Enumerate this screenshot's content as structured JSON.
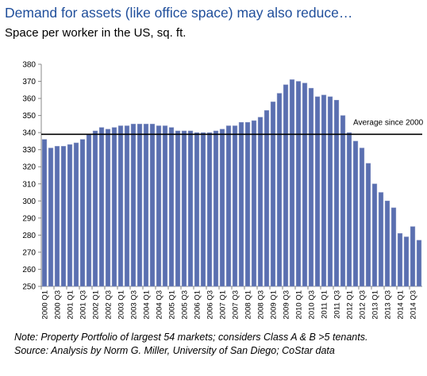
{
  "headline": "Demand for assets (like office space) may also reduce…",
  "subtitle": "Space per worker in the US, sq. ft.",
  "footnotes": {
    "note": "Note: Property Portfolio of largest 54 markets; considers Class A & B >5 tenants.",
    "source": "Source:  Analysis by Norm G. Miller, University of San Diego; CoStar data"
  },
  "colors": {
    "bar": "#5a6fb0",
    "bar_edge": "#8a97c6",
    "reference_line": "#000000",
    "title": "#1f4e9b"
  },
  "chart_data": {
    "type": "bar",
    "title": "Space per worker in the US, sq. ft.",
    "xlabel": "",
    "ylabel": "",
    "ylim": [
      250,
      380
    ],
    "y_ticks": [
      250,
      260,
      270,
      280,
      290,
      300,
      310,
      320,
      330,
      340,
      350,
      360,
      370,
      380
    ],
    "grid": false,
    "categories": [
      "2000 Q1",
      "2000 Q2",
      "2000 Q3",
      "2000 Q4",
      "2001 Q1",
      "2001 Q2",
      "2001 Q3",
      "2001 Q4",
      "2002 Q1",
      "2002 Q2",
      "2002 Q3",
      "2002 Q4",
      "2003 Q1",
      "2003 Q2",
      "2003 Q3",
      "2003 Q4",
      "2004 Q1",
      "2004 Q2",
      "2004 Q3",
      "2004 Q4",
      "2005 Q1",
      "2005 Q2",
      "2005 Q3",
      "2005 Q4",
      "2006 Q1",
      "2006 Q2",
      "2006 Q3",
      "2006 Q4",
      "2007 Q1",
      "2007 Q2",
      "2007 Q3",
      "2007 Q4",
      "2008 Q1",
      "2008 Q2",
      "2008 Q3",
      "2008 Q4",
      "2009 Q1",
      "2009 Q2",
      "2009 Q3",
      "2009 Q4",
      "2010 Q1",
      "2010 Q2",
      "2010 Q3",
      "2010 Q4",
      "2011 Q1",
      "2011 Q2",
      "2011 Q3",
      "2011 Q4",
      "2012 Q1",
      "2012 Q2",
      "2012 Q3",
      "2012 Q4",
      "2013 Q1",
      "2013 Q2",
      "2013 Q3",
      "2013 Q4",
      "2014 Q1",
      "2014 Q2",
      "2014 Q3",
      "2014 Q4"
    ],
    "tick_labels_shown": [
      "2000 Q1",
      "2000 Q3",
      "2001 Q1",
      "2001 Q3",
      "2002 Q1",
      "2002 Q3",
      "2003 Q1",
      "2003 Q3",
      "2004 Q1",
      "2004 Q3",
      "2005 Q1",
      "2005 Q3",
      "2006 Q1",
      "2006 Q3",
      "2007 Q1",
      "2007 Q3",
      "2008 Q1",
      "2008 Q3",
      "2009 Q1",
      "2009 Q3",
      "2010 Q1",
      "2010 Q3",
      "2011 Q1",
      "2011 Q3",
      "2012 Q1",
      "2012 Q3",
      "2013 Q1",
      "2013 Q3",
      "2014 Q1",
      "2014 Q3"
    ],
    "values": [
      336,
      331,
      332,
      332,
      333,
      334,
      336,
      339,
      341,
      343,
      342,
      343,
      344,
      344,
      345,
      345,
      345,
      345,
      344,
      344,
      343,
      341,
      341,
      341,
      340,
      340,
      340,
      341,
      342,
      344,
      344,
      346,
      346,
      347,
      349,
      353,
      358,
      363,
      368,
      371,
      370,
      369,
      366,
      361,
      362,
      361,
      359,
      350,
      340,
      335,
      331,
      322,
      310,
      305,
      300,
      296,
      281,
      279,
      285,
      277
    ],
    "reference_line": {
      "label": "Average since 2000",
      "value": 339
    }
  }
}
